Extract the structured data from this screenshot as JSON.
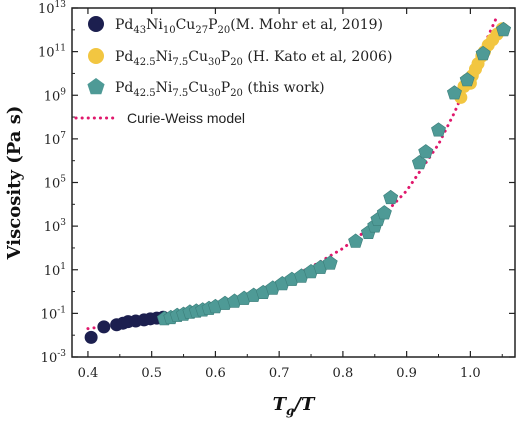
{
  "chart_data": {
    "type": "scatter",
    "xlabel_main": "T",
    "xlabel_sub": "g",
    "xlabel_tail": "/T",
    "ylabel": "Viscosity (Pa s)",
    "xlim": [
      0.375,
      1.07
    ],
    "ylim_log10": [
      -3,
      13
    ],
    "x_ticks": [
      0.4,
      0.5,
      0.6,
      0.7,
      0.8,
      0.9,
      1.0
    ],
    "x_tick_labels": [
      "0.4",
      "0.5",
      "0.6",
      "0.7",
      "0.8",
      "0.9",
      "1.0"
    ],
    "y_ticks_log10": [
      -3,
      -1,
      1,
      3,
      5,
      7,
      9,
      11,
      13
    ],
    "y_tick_labels": [
      {
        "base": "10",
        "exp": "-3"
      },
      {
        "base": "10",
        "exp": "-1"
      },
      {
        "base": "10",
        "exp": "1"
      },
      {
        "base": "10",
        "exp": "3"
      },
      {
        "base": "10",
        "exp": "5"
      },
      {
        "base": "10",
        "exp": "7"
      },
      {
        "base": "10",
        "exp": "9"
      },
      {
        "base": "10",
        "exp": "11"
      },
      {
        "base": "10",
        "exp": "13"
      }
    ],
    "legend": [
      {
        "parts": [
          [
            "Pd",
            ""
          ],
          [
            "43",
            "sub"
          ],
          [
            "Ni",
            ""
          ],
          [
            "10",
            "sub"
          ],
          [
            "Cu",
            ""
          ],
          [
            "27",
            "sub"
          ],
          [
            "P",
            ""
          ],
          [
            "20",
            "sub"
          ],
          [
            "(M. Mohr et al, 2019)",
            ""
          ]
        ],
        "marker": "circle",
        "color": "#1c1f4f"
      },
      {
        "parts": [
          [
            "Pd",
            ""
          ],
          [
            "42.5",
            "sub"
          ],
          [
            "Ni",
            ""
          ],
          [
            "7.5",
            "sub"
          ],
          [
            "Cu",
            ""
          ],
          [
            "30",
            "sub"
          ],
          [
            "P",
            ""
          ],
          [
            "20",
            "sub"
          ],
          [
            " (H. Kato et al, 2006)",
            ""
          ]
        ],
        "marker": "circle",
        "color": "#f2c641"
      },
      {
        "parts": [
          [
            "Pd",
            ""
          ],
          [
            "42.5",
            "sub"
          ],
          [
            "Ni",
            ""
          ],
          [
            "7.5",
            "sub"
          ],
          [
            "Cu",
            ""
          ],
          [
            "30",
            "sub"
          ],
          [
            "P",
            ""
          ],
          [
            "20",
            "sub"
          ],
          [
            " (this work)",
            ""
          ]
        ],
        "marker": "pentagon",
        "color": "#4e9a96"
      },
      {
        "parts": [
          [
            "Curie-Weiss model",
            ""
          ]
        ],
        "marker": "dotted-line",
        "color": "#e0186c"
      }
    ],
    "series": [
      {
        "name": "Pd43Ni10Cu27P20 (M. Mohr et al, 2019)",
        "marker": "circle",
        "color": "#1c1f4f",
        "points": [
          [
            0.405,
            -2.1
          ],
          [
            0.425,
            -1.62
          ],
          [
            0.445,
            -1.52
          ],
          [
            0.455,
            -1.45
          ],
          [
            0.463,
            -1.38
          ],
          [
            0.475,
            -1.35
          ],
          [
            0.488,
            -1.3
          ],
          [
            0.498,
            -1.25
          ],
          [
            0.508,
            -1.22
          ],
          [
            0.518,
            -1.18
          ]
        ]
      },
      {
        "name": "Pd42.5Ni7.5Cu30P20 (H. Kato et al, 2006)",
        "marker": "circle",
        "color": "#f2c641",
        "points": [
          [
            0.985,
            8.9
          ],
          [
            0.99,
            9.4
          ],
          [
            0.995,
            9.7
          ],
          [
            1.0,
            9.55
          ],
          [
            1.003,
            9.9
          ],
          [
            1.008,
            10.2
          ],
          [
            1.012,
            10.45
          ],
          [
            1.018,
            10.8
          ],
          [
            1.022,
            11.0
          ],
          [
            1.028,
            11.3
          ],
          [
            1.035,
            11.55
          ],
          [
            1.042,
            11.8
          ],
          [
            1.05,
            12.05
          ]
        ]
      },
      {
        "name": "Pd42.5Ni7.5Cu30P20 (this work)",
        "marker": "pentagon",
        "color": "#4e9a96",
        "points": [
          [
            0.52,
            -1.25
          ],
          [
            0.53,
            -1.2
          ],
          [
            0.54,
            -1.1
          ],
          [
            0.55,
            -1.05
          ],
          [
            0.56,
            -0.95
          ],
          [
            0.57,
            -0.9
          ],
          [
            0.58,
            -0.85
          ],
          [
            0.59,
            -0.78
          ],
          [
            0.6,
            -0.7
          ],
          [
            0.615,
            -0.55
          ],
          [
            0.63,
            -0.45
          ],
          [
            0.645,
            -0.32
          ],
          [
            0.66,
            -0.18
          ],
          [
            0.675,
            -0.05
          ],
          [
            0.69,
            0.15
          ],
          [
            0.705,
            0.35
          ],
          [
            0.72,
            0.55
          ],
          [
            0.735,
            0.7
          ],
          [
            0.75,
            0.9
          ],
          [
            0.765,
            1.1
          ],
          [
            0.78,
            1.3
          ],
          [
            0.82,
            2.3
          ],
          [
            0.84,
            2.7
          ],
          [
            0.85,
            3.0
          ],
          [
            0.855,
            3.3
          ],
          [
            0.865,
            3.6
          ],
          [
            0.875,
            4.3
          ],
          [
            0.92,
            5.9
          ],
          [
            0.93,
            6.4
          ],
          [
            0.95,
            7.4
          ],
          [
            0.975,
            9.1
          ],
          [
            0.995,
            9.7
          ],
          [
            1.02,
            10.9
          ],
          [
            1.052,
            12.0
          ]
        ]
      }
    ],
    "model_curve": {
      "name": "Curie-Weiss model",
      "color": "#e0186c",
      "points": [
        [
          0.4,
          -1.7
        ],
        [
          0.45,
          -1.52
        ],
        [
          0.5,
          -1.3
        ],
        [
          0.55,
          -1.0
        ],
        [
          0.6,
          -0.62
        ],
        [
          0.65,
          -0.15
        ],
        [
          0.7,
          0.42
        ],
        [
          0.75,
          1.12
        ],
        [
          0.8,
          1.98
        ],
        [
          0.85,
          3.1
        ],
        [
          0.9,
          4.62
        ],
        [
          0.95,
          6.75
        ],
        [
          0.975,
          8.2
        ],
        [
          1.0,
          9.9
        ],
        [
          1.02,
          11.2
        ],
        [
          1.04,
          12.5
        ],
        [
          1.05,
          13.2
        ]
      ]
    }
  }
}
